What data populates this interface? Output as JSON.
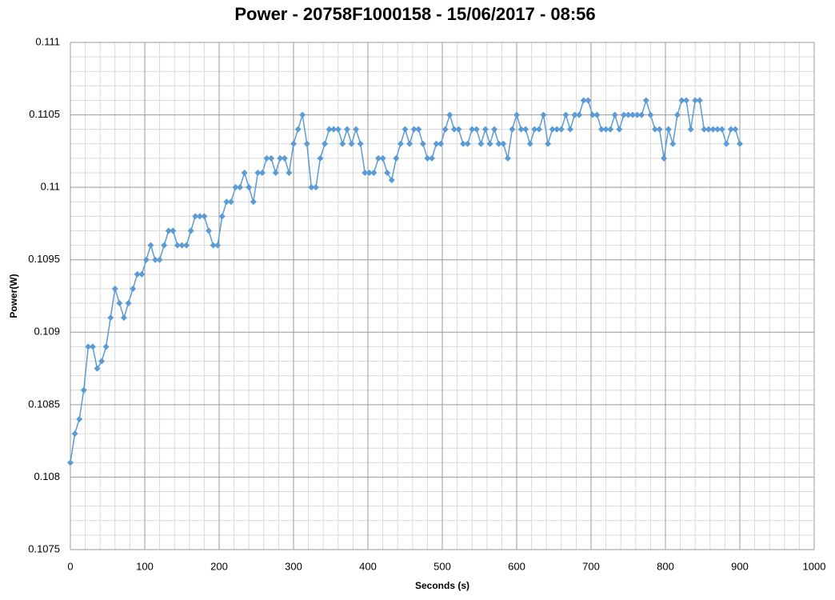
{
  "chart_data": {
    "type": "line",
    "title": "Power - 20758F1000158 - 15/06/2017 - 08:56",
    "x_label": "Seconds (s)",
    "y_label": "Power(W)",
    "xlim": [
      0,
      1000
    ],
    "xticks": [
      0,
      100,
      200,
      300,
      400,
      500,
      600,
      700,
      800,
      900,
      1000
    ],
    "ylim": [
      0.1075,
      0.111
    ],
    "yticks": [
      0.1075,
      0.108,
      0.1085,
      0.109,
      0.1095,
      0.11,
      0.1105,
      0.111
    ],
    "grid": true,
    "x": [
      0,
      6,
      12,
      18,
      24,
      30,
      36,
      42,
      48,
      54,
      60,
      66,
      72,
      78,
      84,
      90,
      96,
      102,
      108,
      114,
      120,
      126,
      132,
      138,
      144,
      150,
      156,
      162,
      168,
      174,
      180,
      186,
      192,
      198,
      204,
      210,
      216,
      222,
      228,
      234,
      240,
      246,
      252,
      258,
      264,
      270,
      276,
      282,
      288,
      294,
      300,
      306,
      312,
      318,
      324,
      330,
      336,
      342,
      348,
      354,
      360,
      366,
      372,
      378,
      384,
      390,
      396,
      402,
      408,
      414,
      420,
      426,
      432,
      438,
      444,
      450,
      456,
      462,
      468,
      474,
      480,
      486,
      492,
      498,
      504,
      510,
      516,
      522,
      528,
      534,
      540,
      546,
      552,
      558,
      564,
      570,
      576,
      582,
      588,
      594,
      600,
      606,
      612,
      618,
      624,
      630,
      636,
      642,
      648,
      654,
      660,
      666,
      672,
      678,
      684,
      690,
      696,
      702,
      708,
      714,
      720,
      726,
      732,
      738,
      744,
      750,
      756,
      762,
      768,
      774,
      780,
      786,
      792,
      798,
      804,
      810,
      816,
      822,
      828,
      834,
      840,
      846,
      852,
      858,
      864,
      870,
      876,
      882,
      888,
      894,
      900
    ],
    "series": [
      {
        "color": "#5b9bd5",
        "values": [
          0.1081,
          0.1083,
          0.1084,
          0.1086,
          0.1089,
          0.1089,
          0.10875,
          0.1088,
          0.1089,
          0.1091,
          0.1093,
          0.1092,
          0.1091,
          0.1092,
          0.1093,
          0.1094,
          0.1094,
          0.1095,
          0.1096,
          0.1095,
          0.1095,
          0.1096,
          0.1097,
          0.1097,
          0.1096,
          0.1096,
          0.1096,
          0.1097,
          0.1098,
          0.1098,
          0.1098,
          0.1097,
          0.1096,
          0.1096,
          0.1098,
          0.1099,
          0.1099,
          0.11,
          0.11,
          0.1101,
          0.11,
          0.1099,
          0.1101,
          0.1101,
          0.1102,
          0.1102,
          0.1101,
          0.1102,
          0.1102,
          0.1101,
          0.1103,
          0.1104,
          0.1105,
          0.1103,
          0.11,
          0.11,
          0.1102,
          0.1103,
          0.1104,
          0.1104,
          0.1104,
          0.1103,
          0.1104,
          0.1103,
          0.1104,
          0.1103,
          0.1101,
          0.1101,
          0.1101,
          0.1102,
          0.1102,
          0.1101,
          0.11005,
          0.1102,
          0.1103,
          0.1104,
          0.1103,
          0.1104,
          0.1104,
          0.1103,
          0.1102,
          0.1102,
          0.1103,
          0.1103,
          0.1104,
          0.1105,
          0.1104,
          0.1104,
          0.1103,
          0.1103,
          0.1104,
          0.1104,
          0.1103,
          0.1104,
          0.1103,
          0.1104,
          0.1103,
          0.1103,
          0.1102,
          0.1104,
          0.1105,
          0.1104,
          0.1104,
          0.1103,
          0.1104,
          0.1104,
          0.1105,
          0.1103,
          0.1104,
          0.1104,
          0.1104,
          0.1105,
          0.1104,
          0.1105,
          0.1105,
          0.1106,
          0.1106,
          0.1105,
          0.1105,
          0.1104,
          0.1104,
          0.1104,
          0.1105,
          0.1104,
          0.1105,
          0.1105,
          0.1105,
          0.1105,
          0.1105,
          0.1106,
          0.1105,
          0.1104,
          0.1104,
          0.1102,
          0.1104,
          0.1103,
          0.1105,
          0.1106,
          0.1106,
          0.1104,
          0.1106,
          0.1106,
          0.1104,
          0.1104,
          0.1104,
          0.1104,
          0.1104,
          0.1103,
          0.1104,
          0.1104,
          0.1103
        ]
      }
    ]
  }
}
